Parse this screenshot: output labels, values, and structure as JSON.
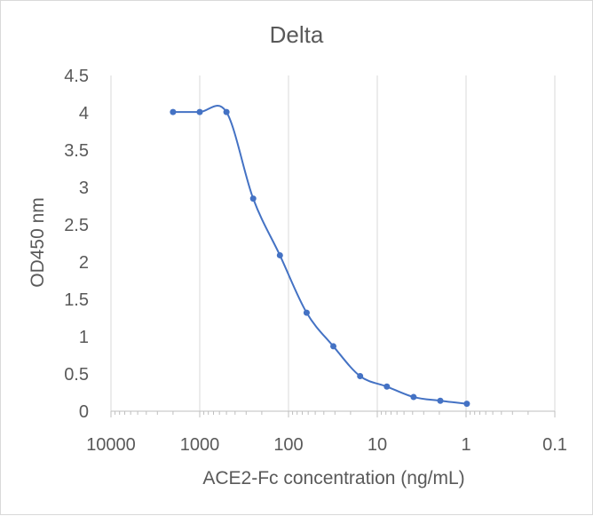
{
  "chart_data": {
    "type": "scatter",
    "title": "Delta",
    "xlabel": "ACE2-Fc concentration (ng/mL)",
    "ylabel": "OD450 nm",
    "x_scale": "log",
    "x_reversed": true,
    "xlim": [
      10000,
      0.1
    ],
    "ylim": [
      0,
      4.5
    ],
    "x_ticks": [
      {
        "value": 10000,
        "label": "10000"
      },
      {
        "value": 1000,
        "label": "1000"
      },
      {
        "value": 100,
        "label": "100"
      },
      {
        "value": 10,
        "label": "10"
      },
      {
        "value": 1,
        "label": "1"
      },
      {
        "value": 0.1,
        "label": "0.1"
      }
    ],
    "y_ticks": [
      {
        "value": 0,
        "label": "0"
      },
      {
        "value": 0.5,
        "label": "0.5"
      },
      {
        "value": 1,
        "label": "1"
      },
      {
        "value": 1.5,
        "label": "1.5"
      },
      {
        "value": 2,
        "label": "2"
      },
      {
        "value": 2.5,
        "label": "2.5"
      },
      {
        "value": 3,
        "label": "3"
      },
      {
        "value": 3.5,
        "label": "3.5"
      },
      {
        "value": 4,
        "label": "4"
      },
      {
        "value": 4.5,
        "label": "4.5"
      }
    ],
    "gridlines": "vertical-major",
    "line_style": "smoothed",
    "series_color": "#4472c4",
    "series": [
      {
        "x": [
          2000,
          1000,
          500,
          250,
          125,
          62.5,
          31.25,
          15.6,
          7.8,
          3.9,
          1.95,
          0.98
        ],
        "y": [
          4.01,
          4.01,
          4.01,
          2.85,
          2.09,
          1.32,
          0.87,
          0.47,
          0.33,
          0.19,
          0.14,
          0.1
        ]
      }
    ]
  }
}
